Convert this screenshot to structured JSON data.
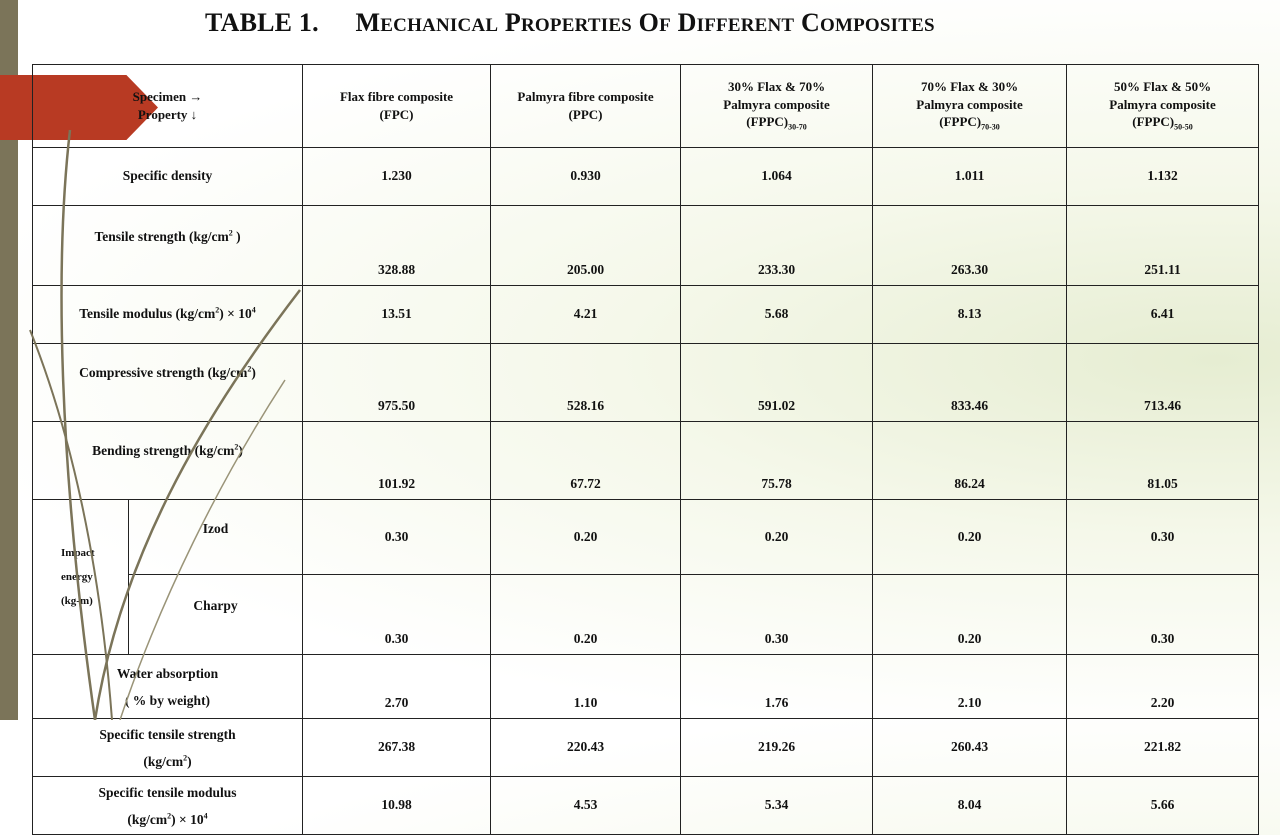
{
  "title": {
    "number": "TABLE 1.",
    "words": [
      {
        "first": "M",
        "rest": "ECHANICAL"
      },
      {
        "first": "P",
        "rest": "ROPERTIES"
      },
      {
        "first": "O",
        "rest": "F"
      },
      {
        "first": "D",
        "rest": "IFFERENT"
      },
      {
        "first": "C",
        "rest": "OMPOSITES"
      }
    ]
  },
  "table": {
    "corner": {
      "line1": "Specimen →",
      "line2": "Property ↓"
    },
    "columns": [
      {
        "line1": "Flax fibre composite",
        "line2": "(FPC)",
        "sub": ""
      },
      {
        "line1": "Palmyra fibre composite",
        "line2": "(PPC)",
        "sub": ""
      },
      {
        "line1": "30% Flax & 70%",
        "line1b": "Palmyra composite",
        "line2": "(FPPC)",
        "sub": "30-70"
      },
      {
        "line1": "70% Flax & 30%",
        "line1b": "Palmyra composite",
        "line2": "(FPPC)",
        "sub": "70-30"
      },
      {
        "line1": "50% Flax & 50%",
        "line1b": "Palmyra composite",
        "line2": "(FPPC)",
        "sub": "50-50"
      }
    ],
    "rows": {
      "specific_density": {
        "label": "Specific density",
        "values": [
          "1.230",
          "0.930",
          "1.064",
          "1.011",
          "1.132"
        ]
      },
      "tensile_strength": {
        "label": "Tensile strength (kg/cm",
        "sup": "2",
        "label_end": " )",
        "values": [
          "328.88",
          "205.00",
          "233.30",
          "263.30",
          "251.11"
        ]
      },
      "tensile_modulus": {
        "label": "Tensile modulus (kg/cm",
        "sup": "2",
        "label_mid": ") × 10",
        "sup2": "4",
        "values": [
          "13.51",
          "4.21",
          "5.68",
          "8.13",
          "6.41"
        ]
      },
      "compressive_strength": {
        "label": "Compressive strength (kg/cm",
        "sup": "2",
        "label_end": ")",
        "values": [
          "975.50",
          "528.16",
          "591.02",
          "833.46",
          "713.46"
        ]
      },
      "bending_strength": {
        "label": "Bending  strength (kg/cm",
        "sup": "2",
        "label_end": ")",
        "values": [
          "101.92",
          "67.72",
          "75.78",
          "86.24",
          "81.05"
        ]
      },
      "impact": {
        "group": {
          "line1": "Impact",
          "line2": "energy",
          "line3": "(kg-m)"
        },
        "izod": {
          "label": "Izod",
          "values": [
            "0.30",
            "0.20",
            "0.20",
            "0.20",
            "0.30"
          ]
        },
        "charpy": {
          "label": "Charpy",
          "values": [
            "0.30",
            "0.20",
            "0.30",
            "0.20",
            "0.30"
          ]
        }
      },
      "water_absorption": {
        "line1": "Water absorption",
        "line2": "( % by weight)",
        "values": [
          "2.70",
          "1.10",
          "1.76",
          "2.10",
          "2.20"
        ]
      },
      "specific_tensile_strength": {
        "line1": "Specific tensile strength",
        "line2": "(kg/cm",
        "sup": "2",
        "line2_end": ")",
        "values": [
          "267.38",
          "220.43",
          "219.26",
          "260.43",
          "221.82"
        ]
      },
      "specific_tensile_modulus": {
        "line1": "Specific tensile modulus",
        "line2": "(kg/cm",
        "sup": "2",
        "line2_mid": ") × 10",
        "sup2": "4",
        "values": [
          "10.98",
          "4.53",
          "5.34",
          "8.04",
          "5.66"
        ]
      }
    }
  }
}
